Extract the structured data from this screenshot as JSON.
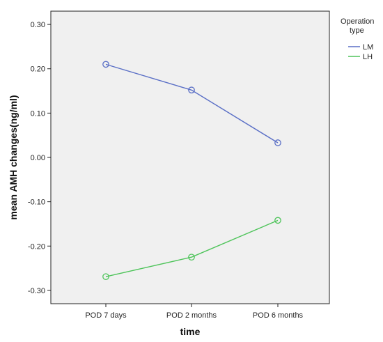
{
  "chart_data": {
    "type": "line",
    "xlabel": "time",
    "ylabel": "mean AMH changes(ng/ml)",
    "categories": [
      "POD 7 days",
      "POD 2 months",
      "POD 6 months"
    ],
    "ylim": [
      -0.33,
      0.33
    ],
    "yticks": [
      0.3,
      0.2,
      0.1,
      0.0,
      -0.1,
      -0.2,
      -0.3
    ],
    "ytick_labels": [
      "0.30",
      "0.20",
      "0.10",
      "0.00",
      "-0.10",
      "-0.20",
      "-0.30"
    ],
    "grid": false,
    "legend": {
      "title_lines": [
        "Operation",
        "type"
      ],
      "placement": "right"
    },
    "series": [
      {
        "name": "LM",
        "color": "#5a6fc6",
        "values": [
          0.21,
          0.152,
          0.033
        ]
      },
      {
        "name": "LH",
        "color": "#4ec45a",
        "values": [
          -0.269,
          -0.225,
          -0.142
        ]
      }
    ],
    "background": "#f0f0f0"
  }
}
